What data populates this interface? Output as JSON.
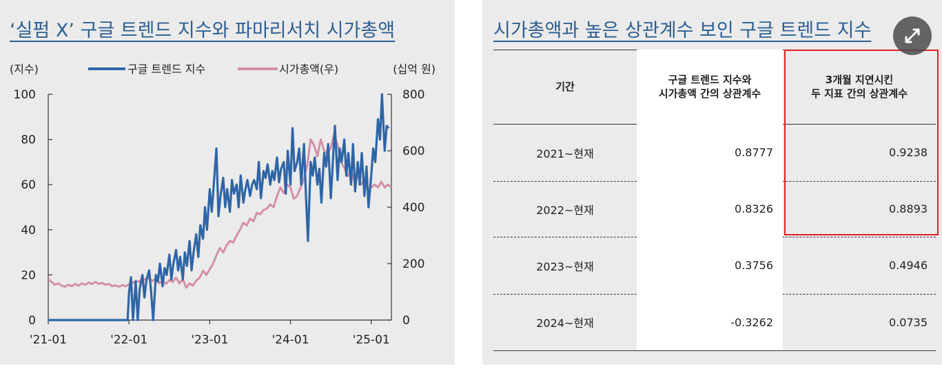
{
  "left_title": "‘실펌 X’ 구글 트렌드 지수와 파마리서치 시가총액",
  "right_title": "시가총액과 높은 상관계수 보인 구글 트렌드 지수",
  "chart_data": {
    "type": "line",
    "title": "‘실펌 X’ 구글 트렌드 지수와 파마리서치 시가총액",
    "left_unit": "(지수)",
    "right_unit": "(십억 원)",
    "legend": [
      "구글 트렌드 지수",
      "시가총액(우)"
    ],
    "legend_placement": "top",
    "ylim_left": [
      0,
      100
    ],
    "ylim_right": [
      0,
      800
    ],
    "yticks_left": [
      "0",
      "20",
      "40",
      "60",
      "80",
      "100"
    ],
    "yticks_right": [
      "0",
      "200",
      "400",
      "600",
      "800"
    ],
    "xticks": [
      "'21-01",
      "'22-01",
      "'23-01",
      "'24-01",
      "'25-01"
    ],
    "x_range": [
      0,
      51
    ],
    "grid": false,
    "colors": {
      "trend": "#2e65a6",
      "mcap": "#d48fa7"
    },
    "series": [
      {
        "name": "구글 트렌드 지수",
        "axis": "left",
        "points": [
          [
            0,
            0
          ],
          [
            4,
            0
          ],
          [
            8,
            0
          ],
          [
            11.8,
            0
          ],
          [
            12,
            12
          ],
          [
            12.3,
            19
          ],
          [
            12.6,
            0
          ],
          [
            13,
            17
          ],
          [
            13.3,
            0
          ],
          [
            13.6,
            14
          ],
          [
            14,
            20
          ],
          [
            14.3,
            10
          ],
          [
            14.6,
            18
          ],
          [
            15,
            22
          ],
          [
            15.3,
            12
          ],
          [
            15.6,
            0
          ],
          [
            16,
            20
          ],
          [
            16.3,
            17
          ],
          [
            16.6,
            25
          ],
          [
            17,
            15
          ],
          [
            17.3,
            23
          ],
          [
            17.6,
            20
          ],
          [
            18,
            29
          ],
          [
            18.3,
            18
          ],
          [
            18.6,
            25
          ],
          [
            19,
            31
          ],
          [
            19.3,
            22
          ],
          [
            19.6,
            28
          ],
          [
            20,
            18
          ],
          [
            20.3,
            30
          ],
          [
            20.6,
            24
          ],
          [
            21,
            35
          ],
          [
            21.3,
            22
          ],
          [
            21.6,
            30
          ],
          [
            22,
            38
          ],
          [
            22.3,
            28
          ],
          [
            22.6,
            42
          ],
          [
            23,
            36
          ],
          [
            23.3,
            50
          ],
          [
            23.6,
            40
          ],
          [
            24,
            58
          ],
          [
            24.3,
            48
          ],
          [
            24.6,
            60
          ],
          [
            25,
            76
          ],
          [
            25.3,
            46
          ],
          [
            25.6,
            55
          ],
          [
            26,
            63
          ],
          [
            26.3,
            50
          ],
          [
            26.6,
            58
          ],
          [
            27,
            48
          ],
          [
            27.3,
            62
          ],
          [
            27.6,
            56
          ],
          [
            28,
            60
          ],
          [
            28.3,
            50
          ],
          [
            28.6,
            64
          ],
          [
            29,
            52
          ],
          [
            29.3,
            58
          ],
          [
            29.6,
            62
          ],
          [
            30,
            55
          ],
          [
            30.3,
            60
          ],
          [
            30.6,
            62
          ],
          [
            31,
            58
          ],
          [
            31.3,
            70
          ],
          [
            31.6,
            54
          ],
          [
            32,
            66
          ],
          [
            32.3,
            63
          ],
          [
            32.6,
            69
          ],
          [
            33,
            60
          ],
          [
            33.3,
            66
          ],
          [
            33.6,
            62
          ],
          [
            34,
            72
          ],
          [
            34.3,
            61
          ],
          [
            34.6,
            67
          ],
          [
            35,
            70
          ],
          [
            35.3,
            56
          ],
          [
            35.6,
            75
          ],
          [
            36,
            60
          ],
          [
            36.3,
            85
          ],
          [
            36.6,
            66
          ],
          [
            37,
            70
          ],
          [
            37.3,
            76
          ],
          [
            37.6,
            60
          ],
          [
            38,
            78
          ],
          [
            38.3,
            55
          ],
          [
            38.6,
            35
          ],
          [
            39,
            70
          ],
          [
            39.3,
            64
          ],
          [
            39.6,
            72
          ],
          [
            40,
            60
          ],
          [
            40.3,
            67
          ],
          [
            40.6,
            52
          ],
          [
            41,
            74
          ],
          [
            41.3,
            68
          ],
          [
            41.6,
            78
          ],
          [
            42,
            54
          ],
          [
            42.3,
            70
          ],
          [
            42.6,
            86
          ],
          [
            43,
            62
          ],
          [
            43.3,
            76
          ],
          [
            43.6,
            70
          ],
          [
            44,
            80
          ],
          [
            44.3,
            64
          ],
          [
            44.6,
            74
          ],
          [
            45,
            60
          ],
          [
            45.3,
            78
          ],
          [
            45.6,
            57
          ],
          [
            46,
            70
          ],
          [
            46.3,
            60
          ],
          [
            46.6,
            74
          ],
          [
            47,
            55
          ],
          [
            47.3,
            68
          ],
          [
            47.6,
            50
          ],
          [
            48,
            64
          ],
          [
            48.3,
            76
          ],
          [
            48.6,
            70
          ],
          [
            49,
            89
          ],
          [
            49.3,
            80
          ],
          [
            49.6,
            100
          ],
          [
            50,
            75
          ],
          [
            50.3,
            86
          ],
          [
            50.6,
            85
          ]
        ]
      },
      {
        "name": "시가총액(우)",
        "axis": "right",
        "points": [
          [
            0,
            145
          ],
          [
            0.5,
            135
          ],
          [
            1,
            125
          ],
          [
            1.5,
            130
          ],
          [
            2,
            122
          ],
          [
            2.5,
            118
          ],
          [
            3,
            125
          ],
          [
            3.5,
            120
          ],
          [
            4,
            128
          ],
          [
            4.5,
            122
          ],
          [
            5,
            130
          ],
          [
            5.5,
            125
          ],
          [
            6,
            133
          ],
          [
            6.5,
            128
          ],
          [
            7,
            135
          ],
          [
            7.5,
            128
          ],
          [
            8,
            132
          ],
          [
            8.5,
            125
          ],
          [
            9,
            128
          ],
          [
            9.5,
            120
          ],
          [
            10,
            123
          ],
          [
            10.5,
            118
          ],
          [
            11,
            124
          ],
          [
            11.5,
            120
          ],
          [
            12,
            126
          ],
          [
            12.5,
            130
          ],
          [
            13,
            140
          ],
          [
            13.5,
            135
          ],
          [
            14,
            148
          ],
          [
            14.5,
            142
          ],
          [
            15,
            150
          ],
          [
            15.5,
            138
          ],
          [
            16,
            148
          ],
          [
            16.5,
            130
          ],
          [
            17,
            140
          ],
          [
            17.5,
            128
          ],
          [
            18,
            142
          ],
          [
            18.5,
            135
          ],
          [
            19,
            150
          ],
          [
            19.5,
            130
          ],
          [
            20,
            145
          ],
          [
            20.5,
            115
          ],
          [
            21,
            130
          ],
          [
            21.5,
            122
          ],
          [
            22,
            140
          ],
          [
            22.5,
            150
          ],
          [
            23,
            175
          ],
          [
            23.5,
            160
          ],
          [
            24,
            180
          ],
          [
            24.5,
            200
          ],
          [
            25,
            230
          ],
          [
            25.5,
            255
          ],
          [
            26,
            240
          ],
          [
            26.5,
            265
          ],
          [
            27,
            280
          ],
          [
            27.5,
            275
          ],
          [
            28,
            300
          ],
          [
            28.5,
            320
          ],
          [
            29,
            345
          ],
          [
            29.5,
            335
          ],
          [
            30,
            360
          ],
          [
            30.5,
            350
          ],
          [
            31,
            380
          ],
          [
            31.5,
            375
          ],
          [
            32,
            390
          ],
          [
            32.5,
            395
          ],
          [
            33,
            410
          ],
          [
            33.5,
            400
          ],
          [
            34,
            440
          ],
          [
            34.5,
            470
          ],
          [
            35,
            450
          ],
          [
            35.5,
            480
          ],
          [
            36,
            470
          ],
          [
            36.5,
            430
          ],
          [
            37,
            440
          ],
          [
            37.5,
            470
          ],
          [
            38,
            500
          ],
          [
            38.5,
            550
          ],
          [
            39,
            640
          ],
          [
            39.5,
            620
          ],
          [
            40,
            580
          ],
          [
            40.5,
            640
          ],
          [
            41,
            600
          ],
          [
            41.5,
            590
          ],
          [
            42,
            610
          ],
          [
            42.5,
            660
          ],
          [
            43,
            620
          ],
          [
            43.5,
            560
          ],
          [
            44,
            540
          ],
          [
            44.5,
            510
          ],
          [
            45,
            530
          ],
          [
            45.5,
            490
          ],
          [
            46,
            510
          ],
          [
            46.5,
            480
          ],
          [
            47,
            500
          ],
          [
            47.5,
            460
          ],
          [
            48,
            470
          ],
          [
            48.5,
            480
          ],
          [
            49,
            470
          ],
          [
            49.5,
            490
          ],
          [
            50,
            470
          ],
          [
            50.5,
            480
          ],
          [
            51,
            470
          ]
        ]
      }
    ]
  },
  "table": {
    "title": "시가총액과 높은 상관계수 보인 구글 트렌드 지수",
    "type": "table",
    "headers": [
      [
        "기간"
      ],
      [
        "구글 트렌드 지수와",
        "시가총액 간의 상관계수"
      ],
      [
        "3개월 지연시킨",
        "두 지표 간의 상관계수"
      ]
    ],
    "rows": [
      {
        "period": "2021~현재",
        "r1": "0.8777",
        "r2": "0.9238"
      },
      {
        "period": "2022~현재",
        "r1": "0.8326",
        "r2": "0.8893"
      },
      {
        "period": "2023~현재",
        "r1": "0.3756",
        "r2": "0.4946"
      },
      {
        "period": "2024~현재",
        "r1": "-0.3262",
        "r2": "0.0735"
      }
    ],
    "highlight_color": "#e02020"
  },
  "expand_icon": "expand-arrows-icon"
}
